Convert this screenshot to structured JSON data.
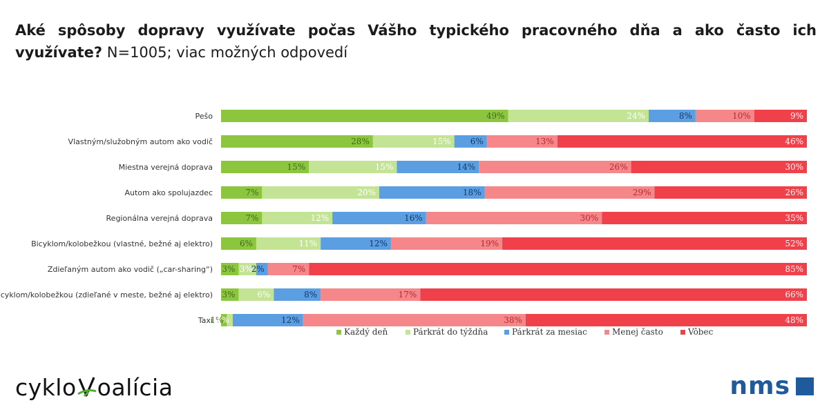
{
  "title": {
    "question": "Aké spôsoby dopravy využívate počas Vášho typického pracovného dňa a ako často ich využívate?",
    "note": "N=1005; viac možných odpovedí"
  },
  "logos": {
    "left_prefix": "cyklo",
    "left_suffix": "oalícia",
    "right_text": "nms"
  },
  "chart_data": {
    "type": "bar",
    "orientation": "horizontal",
    "stacked": true,
    "unit": "%",
    "categories": [
      "Pešo",
      "Vlastným/služobným autom ako vodič",
      "Miestna verejná doprava",
      "Autom ako spolujazdec",
      "Regionálna verejná doprava",
      "Bicyklom/kolobežkou (vlastné, bežné aj elektro)",
      "Zdieľaným autom ako vodič („car-sharing“)",
      "Bicyklom/kolobežkou (zdieľané v meste, bežné aj elektro)",
      "Taxi"
    ],
    "series": [
      {
        "name": "Každý deň",
        "color": "#8cc63f",
        "label_color": "#3f6a18",
        "values": [
          49,
          28,
          15,
          7,
          7,
          6,
          3,
          3,
          1
        ]
      },
      {
        "name": "Párkrát do týždňa",
        "color": "#c3e395",
        "label_color": "#ffffff",
        "values": [
          24,
          15,
          15,
          20,
          12,
          11,
          3,
          6,
          1
        ]
      },
      {
        "name": "Párkrát za mesiac",
        "color": "#5b9ee1",
        "label_color": "#123a66",
        "values": [
          8,
          6,
          14,
          18,
          16,
          12,
          2,
          8,
          12
        ]
      },
      {
        "name": "Menej často",
        "color": "#f5878b",
        "label_color": "#b22a2f",
        "values": [
          10,
          13,
          26,
          29,
          30,
          19,
          7,
          17,
          38
        ]
      },
      {
        "name": "Vôbec",
        "color": "#f0414b",
        "label_color": "#ffffff",
        "values": [
          9,
          46,
          30,
          26,
          35,
          52,
          85,
          66,
          48
        ]
      }
    ],
    "legend_position": "bottom",
    "grid": false
  }
}
